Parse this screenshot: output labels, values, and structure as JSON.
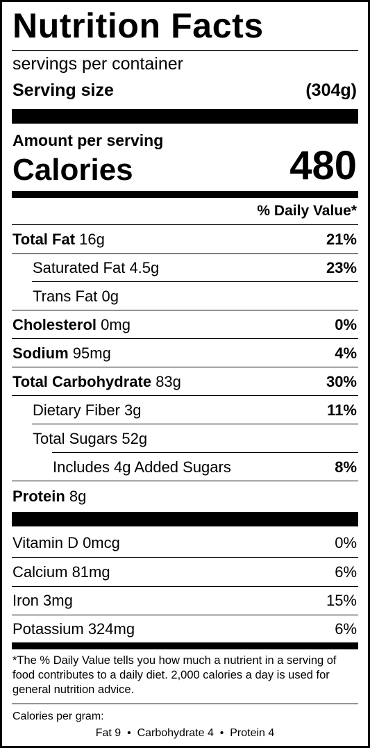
{
  "title": "Nutrition Facts",
  "servings": "servings per container",
  "serving_size": {
    "label": "Serving size",
    "value": "(304g)"
  },
  "amount_per_serving": "Amount per serving",
  "calories": {
    "label": "Calories",
    "value": "480"
  },
  "daily_value_header": "% Daily Value*",
  "nutrients": [
    {
      "name": "Total Fat",
      "amount": "16g",
      "dv": "21%"
    },
    {
      "name": "Saturated Fat",
      "amount": "4.5g",
      "dv": "23%"
    },
    {
      "name": "Trans Fat",
      "amount": "0g",
      "dv": ""
    },
    {
      "name": "Cholesterol",
      "amount": "0mg",
      "dv": "0%"
    },
    {
      "name": "Sodium",
      "amount": "95mg",
      "dv": "4%"
    },
    {
      "name": "Total Carbohydrate",
      "amount": "83g",
      "dv": "30%"
    },
    {
      "name": "Dietary Fiber",
      "amount": "3g",
      "dv": "11%"
    },
    {
      "name": "Total Sugars",
      "amount": "52g",
      "dv": ""
    },
    {
      "name": "Includes 4g Added Sugars",
      "amount": "",
      "dv": "8%"
    },
    {
      "name": "Protein",
      "amount": "8g",
      "dv": ""
    }
  ],
  "vitamins": [
    {
      "name": "Vitamin D 0mcg",
      "dv": "0%"
    },
    {
      "name": "Calcium 81mg",
      "dv": "6%"
    },
    {
      "name": "Iron 3mg",
      "dv": "15%"
    },
    {
      "name": "Potassium 324mg",
      "dv": "6%"
    }
  ],
  "footnote": "*The % Daily Value tells you how much a nutrient in a serving of food contributes to a daily diet. 2,000 calories a day is used for general nutrition advice.",
  "calories_per_gram": {
    "label": "Calories per gram:",
    "values": "Fat 9  •  Carbohydrate 4  •  Protein 4"
  }
}
